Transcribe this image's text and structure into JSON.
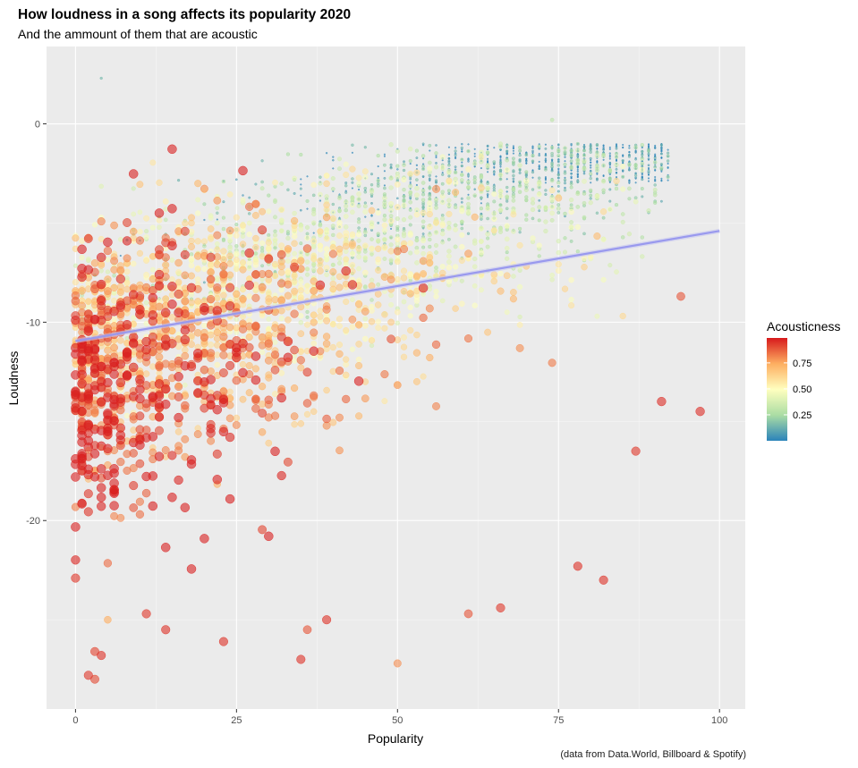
{
  "chart_data": {
    "type": "scatter",
    "title": "How loudness in a song affects its popularity 2020",
    "subtitle": "And the ammount of them that are acoustic",
    "caption": "(data from Data.World, Billboard & Spotify)",
    "xlabel": "Popularity",
    "ylabel": "Loudness",
    "xlim": [
      -4.5,
      104
    ],
    "ylim": [
      -29.5,
      3.9
    ],
    "x_ticks": [
      0,
      25,
      50,
      75,
      100
    ],
    "y_ticks": [
      0,
      -10,
      -20
    ],
    "x_tick_labels": [
      "0",
      "25",
      "50",
      "75",
      "100"
    ],
    "y_tick_labels": [
      "0",
      "-10",
      "-20"
    ],
    "grid": true,
    "legend": {
      "title": "Acousticness",
      "position": "right",
      "ticks": [
        0.25,
        0.5,
        0.75
      ],
      "tick_labels": [
        "0.25",
        "0.50",
        "0.75"
      ],
      "range": [
        0.0,
        0.99
      ],
      "palette": [
        "#2b83ba",
        "#abdda4",
        "#ffffbf",
        "#fdae61",
        "#d7191c"
      ]
    },
    "trend_line": {
      "type": "linear",
      "color": "#9999ee",
      "points": [
        {
          "x": 0,
          "y": -10.95
        },
        {
          "x": 100,
          "y": -5.4
        }
      ]
    },
    "series": [
      {
        "name": "songs",
        "size_by": "Acousticness",
        "color_by": "Acousticness",
        "n_points_approx": 9000,
        "clusters": [
          {
            "description": "high acousticness, low popularity",
            "x_range": [
              0,
              45
            ],
            "y_mean": -12.5,
            "y_sd": 3.2,
            "acousticness_range": [
              0.55,
              0.99
            ]
          },
          {
            "description": "mid acousticness",
            "x_range": [
              0,
              70
            ],
            "y_mean": -8.5,
            "y_sd": 3.0,
            "acousticness_range": [
              0.3,
              0.6
            ]
          },
          {
            "description": "low acousticness, higher popularity",
            "x_range": [
              15,
              90
            ],
            "y_mean": -6.5,
            "y_sd": 2.5,
            "acousticness_range": [
              0.0,
              0.3
            ]
          }
        ],
        "outliers": [
          {
            "x": 0,
            "y": -22.9,
            "acousticness": 0.95
          },
          {
            "x": 2,
            "y": -27.8,
            "acousticness": 0.95
          },
          {
            "x": 3,
            "y": -28.0,
            "acousticness": 0.92
          },
          {
            "x": 3,
            "y": -26.6,
            "acousticness": 0.93
          },
          {
            "x": 4,
            "y": -26.8,
            "acousticness": 0.96
          },
          {
            "x": 4,
            "y": 2.3,
            "acousticness": 0.15
          },
          {
            "x": 5,
            "y": -25.0,
            "acousticness": 0.75
          },
          {
            "x": 11,
            "y": -24.7,
            "acousticness": 0.95
          },
          {
            "x": 14,
            "y": -25.5,
            "acousticness": 0.96
          },
          {
            "x": 23,
            "y": -26.1,
            "acousticness": 0.96
          },
          {
            "x": 35,
            "y": -27.0,
            "acousticness": 0.96
          },
          {
            "x": 36,
            "y": -25.5,
            "acousticness": 0.9
          },
          {
            "x": 39,
            "y": -25.0,
            "acousticness": 0.96
          },
          {
            "x": 50,
            "y": -27.2,
            "acousticness": 0.8
          },
          {
            "x": 61,
            "y": -24.7,
            "acousticness": 0.9
          },
          {
            "x": 66,
            "y": -24.4,
            "acousticness": 0.95
          },
          {
            "x": 78,
            "y": -22.3,
            "acousticness": 0.96
          },
          {
            "x": 82,
            "y": -23.0,
            "acousticness": 0.96
          },
          {
            "x": 74,
            "y": 0.2,
            "acousticness": 0.3
          },
          {
            "x": 97,
            "y": -14.5,
            "acousticness": 0.97
          },
          {
            "x": 91,
            "y": -14.0,
            "acousticness": 0.97
          },
          {
            "x": 94,
            "y": -8.7,
            "acousticness": 0.9
          },
          {
            "x": 87,
            "y": -16.5,
            "acousticness": 0.95
          }
        ]
      }
    ]
  }
}
